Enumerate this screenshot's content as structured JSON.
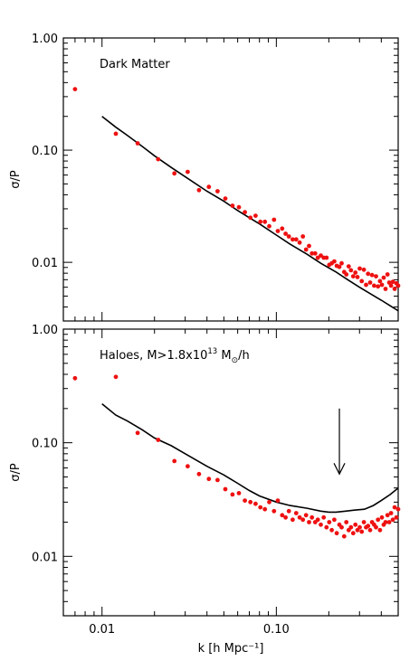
{
  "chart_data": [
    {
      "type": "scatter",
      "panel_label": "Dark Matter",
      "xlabel": "k [h Mpc⁻¹]",
      "ylabel": "σ/P",
      "xscale": "log",
      "yscale": "log",
      "xlim": [
        0.006,
        0.5
      ],
      "ylim": [
        0.003,
        1.0
      ],
      "xticks": [
        "0.01",
        "0.10"
      ],
      "yticks": [
        "0.01",
        "0.10",
        "1.00"
      ],
      "grid": false,
      "colors": {
        "points": "#ee1111",
        "line": "#000000"
      },
      "series": [
        {
          "style": "points",
          "x": [
            0.007,
            0.012,
            0.016,
            0.021,
            0.026,
            0.031,
            0.036,
            0.041,
            0.046,
            0.051,
            0.056,
            0.061,
            0.066,
            0.071,
            0.076,
            0.081,
            0.086,
            0.091,
            0.097,
            0.102,
            0.108,
            0.113,
            0.118,
            0.124,
            0.13,
            0.136,
            0.142,
            0.148,
            0.154,
            0.16,
            0.167,
            0.173,
            0.18,
            0.187,
            0.194,
            0.201,
            0.208,
            0.215,
            0.222,
            0.23,
            0.237,
            0.245,
            0.252,
            0.26,
            0.268,
            0.276,
            0.284,
            0.292,
            0.301,
            0.309,
            0.318,
            0.327,
            0.336,
            0.345,
            0.354,
            0.364,
            0.373,
            0.383,
            0.393,
            0.403,
            0.413,
            0.423,
            0.434,
            0.444,
            0.455,
            0.466,
            0.477,
            0.488,
            0.5
          ],
          "y": [
            0.35,
            0.14,
            0.115,
            0.083,
            0.062,
            0.064,
            0.044,
            0.047,
            0.043,
            0.037,
            0.032,
            0.031,
            0.028,
            0.025,
            0.026,
            0.023,
            0.023,
            0.021,
            0.024,
            0.019,
            0.02,
            0.018,
            0.017,
            0.016,
            0.016,
            0.015,
            0.017,
            0.013,
            0.014,
            0.012,
            0.012,
            0.011,
            0.0115,
            0.011,
            0.011,
            0.0095,
            0.0098,
            0.0102,
            0.0093,
            0.0091,
            0.0098,
            0.0082,
            0.0078,
            0.0092,
            0.0085,
            0.0075,
            0.0081,
            0.0074,
            0.0088,
            0.0068,
            0.0086,
            0.0063,
            0.0079,
            0.0066,
            0.0077,
            0.0062,
            0.0075,
            0.0061,
            0.0068,
            0.0063,
            0.0073,
            0.0058,
            0.0078,
            0.0066,
            0.0062,
            0.0067,
            0.0058,
            0.0065,
            0.0062
          ]
        },
        {
          "style": "line",
          "x": [
            0.01,
            0.012,
            0.014,
            0.017,
            0.02,
            0.025,
            0.03,
            0.04,
            0.05,
            0.06,
            0.07,
            0.08,
            0.1,
            0.12,
            0.15,
            0.18,
            0.22,
            0.26,
            0.3,
            0.35,
            0.4,
            0.45,
            0.5
          ],
          "y": [
            0.2,
            0.16,
            0.135,
            0.108,
            0.089,
            0.07,
            0.058,
            0.043,
            0.035,
            0.029,
            0.025,
            0.022,
            0.0175,
            0.0145,
            0.0118,
            0.0098,
            0.0082,
            0.0069,
            0.006,
            0.0052,
            0.0046,
            0.0041,
            0.0037
          ]
        }
      ]
    },
    {
      "type": "scatter",
      "panel_label": "Haloes, M>1.8x10",
      "panel_label_sup": "13",
      "panel_label_mid": " M",
      "panel_label_sub": "⊙",
      "panel_label_end": "/h",
      "xlabel": "k [h Mpc⁻¹]",
      "ylabel": "σ/P",
      "xscale": "log",
      "yscale": "log",
      "xlim": [
        0.006,
        0.5
      ],
      "ylim": [
        0.003,
        1.0
      ],
      "xticks": [
        "0.01",
        "0.10"
      ],
      "yticks": [
        "0.01",
        "0.10",
        "1.00"
      ],
      "grid": false,
      "annotation": {
        "type": "arrow",
        "x": 0.23,
        "y_from": 0.2,
        "y_to": 0.053,
        "direction": "down"
      },
      "colors": {
        "points": "#ee1111",
        "line": "#000000"
      },
      "series": [
        {
          "style": "points",
          "x": [
            0.007,
            0.012,
            0.016,
            0.021,
            0.026,
            0.031,
            0.036,
            0.041,
            0.046,
            0.051,
            0.056,
            0.061,
            0.066,
            0.071,
            0.076,
            0.081,
            0.086,
            0.091,
            0.097,
            0.102,
            0.108,
            0.113,
            0.118,
            0.124,
            0.13,
            0.136,
            0.142,
            0.148,
            0.154,
            0.16,
            0.167,
            0.173,
            0.18,
            0.187,
            0.194,
            0.201,
            0.208,
            0.215,
            0.222,
            0.23,
            0.237,
            0.245,
            0.252,
            0.26,
            0.268,
            0.276,
            0.284,
            0.292,
            0.301,
            0.309,
            0.318,
            0.327,
            0.336,
            0.345,
            0.354,
            0.364,
            0.373,
            0.383,
            0.393,
            0.403,
            0.413,
            0.423,
            0.434,
            0.444,
            0.455,
            0.466,
            0.477,
            0.488,
            0.5
          ],
          "y": [
            0.37,
            0.38,
            0.122,
            0.106,
            0.069,
            0.062,
            0.053,
            0.048,
            0.047,
            0.039,
            0.035,
            0.036,
            0.031,
            0.03,
            0.029,
            0.027,
            0.026,
            0.03,
            0.025,
            0.031,
            0.023,
            0.022,
            0.025,
            0.021,
            0.024,
            0.022,
            0.021,
            0.023,
            0.02,
            0.022,
            0.02,
            0.021,
            0.019,
            0.022,
            0.018,
            0.02,
            0.017,
            0.021,
            0.016,
            0.019,
            0.018,
            0.015,
            0.02,
            0.017,
            0.018,
            0.016,
            0.019,
            0.017,
            0.018,
            0.0165,
            0.02,
            0.018,
            0.0185,
            0.017,
            0.02,
            0.019,
            0.018,
            0.021,
            0.017,
            0.022,
            0.019,
            0.02,
            0.023,
            0.02,
            0.024,
            0.021,
            0.027,
            0.022,
            0.026
          ]
        },
        {
          "style": "line",
          "x": [
            0.01,
            0.012,
            0.014,
            0.017,
            0.02,
            0.025,
            0.03,
            0.04,
            0.05,
            0.06,
            0.07,
            0.08,
            0.1,
            0.12,
            0.15,
            0.18,
            0.2,
            0.22,
            0.25,
            0.28,
            0.32,
            0.36,
            0.4,
            0.45,
            0.5
          ],
          "y": [
            0.22,
            0.175,
            0.155,
            0.13,
            0.11,
            0.094,
            0.08,
            0.062,
            0.052,
            0.044,
            0.038,
            0.034,
            0.03,
            0.028,
            0.0265,
            0.025,
            0.0245,
            0.0245,
            0.025,
            0.0255,
            0.026,
            0.028,
            0.031,
            0.035,
            0.04
          ]
        }
      ]
    }
  ]
}
